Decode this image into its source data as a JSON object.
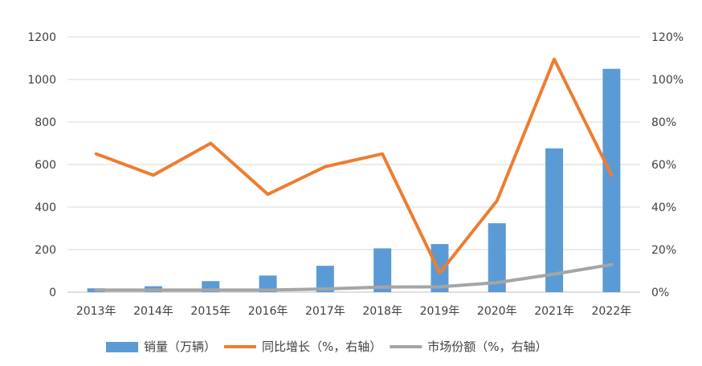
{
  "chart_data": {
    "type": "bar",
    "categories": [
      "2013年",
      "2014年",
      "2015年",
      "2016年",
      "2017年",
      "2018年",
      "2019年",
      "2020年",
      "2021年",
      "2022年"
    ],
    "series": [
      {
        "name": "销量（万辆）",
        "type": "bar",
        "axis": "left",
        "color": "#5B9BD5",
        "values": [
          18,
          28,
          52,
          78,
          124,
          206,
          226,
          324,
          676,
          1050
        ]
      },
      {
        "name": "同比增长（%，右轴）",
        "type": "line",
        "axis": "right",
        "color": "#ED7D31",
        "values": [
          0.65,
          0.55,
          0.7,
          0.46,
          0.59,
          0.65,
          0.09,
          0.43,
          1.095,
          0.55
        ]
      },
      {
        "name": "市场份额（%，右轴）",
        "type": "line",
        "axis": "right",
        "color": "#A5A5A5",
        "values": [
          0.01,
          0.01,
          0.01,
          0.01,
          0.015,
          0.024,
          0.025,
          0.045,
          0.085,
          0.13
        ]
      }
    ],
    "y_left": {
      "lim": [
        0,
        1200
      ],
      "ticks": [
        "0",
        "200",
        "400",
        "600",
        "800",
        "1000",
        "1200"
      ]
    },
    "y_right": {
      "lim": [
        0,
        1.2
      ],
      "ticks": [
        "0%",
        "20%",
        "40%",
        "60%",
        "80%",
        "100%",
        "120%"
      ]
    },
    "grid": true,
    "legend": "bottom"
  }
}
